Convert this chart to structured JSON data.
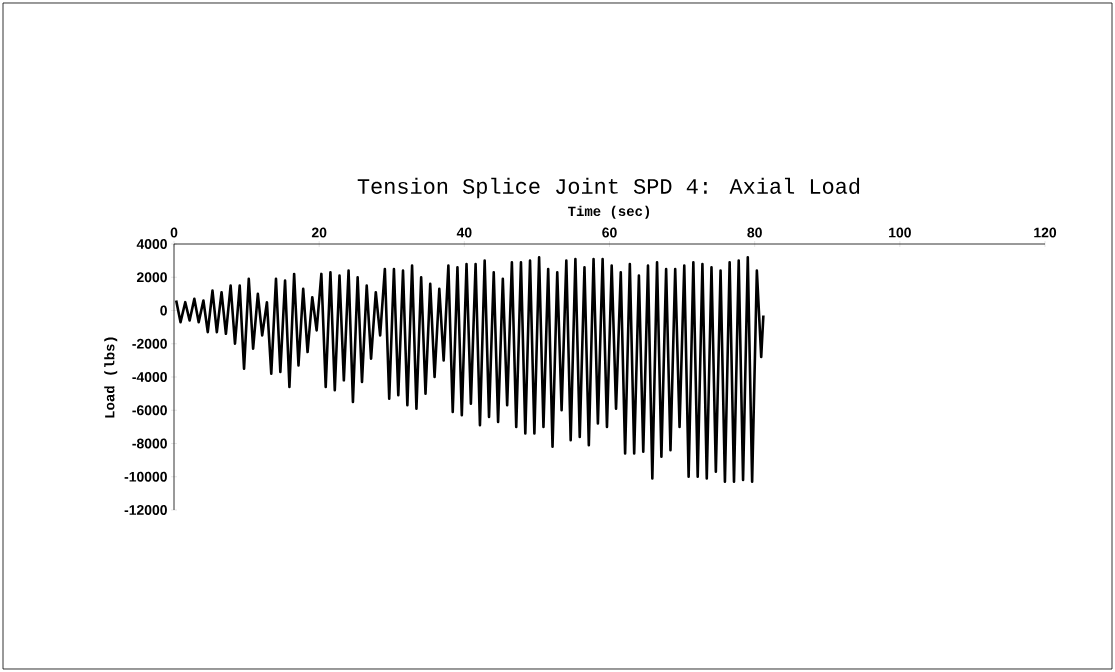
{
  "chart_data": {
    "type": "line",
    "title": "Tension Splice Joint SPD 4:  Axial Load",
    "xlabel": "Time (sec)",
    "ylabel": "Load (lbs)",
    "xlim": [
      0,
      120
    ],
    "xticks": [
      0,
      20,
      40,
      60,
      80,
      100,
      120
    ],
    "ylim": [
      -12000,
      4000
    ],
    "yticks": [
      -12000,
      -10000,
      -8000,
      -6000,
      -4000,
      -2000,
      0,
      2000,
      4000
    ],
    "grid": false,
    "marker": "none",
    "line_style": "solid",
    "series": [
      {
        "color": "#000000",
        "x": [
          0.3,
          0.9,
          1.55,
          2.15,
          2.8,
          3.4,
          4.05,
          4.65,
          5.3,
          5.9,
          6.55,
          7.15,
          7.8,
          8.4,
          9.05,
          9.65,
          10.3,
          10.9,
          11.55,
          12.15,
          12.8,
          13.4,
          14.05,
          14.65,
          15.3,
          15.9,
          16.55,
          17.15,
          17.8,
          18.4,
          19.05,
          19.65,
          20.3,
          20.9,
          21.55,
          22.15,
          22.8,
          23.4,
          24.05,
          24.65,
          25.3,
          25.9,
          26.55,
          27.15,
          27.8,
          28.4,
          29.05,
          29.65,
          30.3,
          30.9,
          31.55,
          32.15,
          32.8,
          33.4,
          34.05,
          34.65,
          35.3,
          35.9,
          36.55,
          37.15,
          37.8,
          38.4,
          39.05,
          39.65,
          40.3,
          40.9,
          41.55,
          42.15,
          42.8,
          43.4,
          44.05,
          44.65,
          45.3,
          45.9,
          46.55,
          47.15,
          47.8,
          48.4,
          49.05,
          49.65,
          50.3,
          50.9,
          51.55,
          52.15,
          52.8,
          53.4,
          54.05,
          54.65,
          55.3,
          55.9,
          56.55,
          57.15,
          57.8,
          58.4,
          59.05,
          59.65,
          60.3,
          60.9,
          61.55,
          62.15,
          62.8,
          63.4,
          64.05,
          64.65,
          65.3,
          65.9,
          66.55,
          67.15,
          67.8,
          68.4,
          69.05,
          69.65,
          70.3,
          70.9,
          71.55,
          72.15,
          72.8,
          73.4,
          74.05,
          74.65,
          75.3,
          75.9,
          76.55,
          77.15,
          77.8,
          78.4,
          79.05,
          79.65,
          80.3,
          80.9,
          81.2
        ],
        "values": [
          600,
          -700,
          500,
          -600,
          700,
          -700,
          600,
          -1300,
          1200,
          -1300,
          1100,
          -1400,
          1500,
          -2000,
          1500,
          -3500,
          1900,
          -2300,
          1000,
          -1500,
          500,
          -3800,
          1900,
          -3700,
          1800,
          -4600,
          2200,
          -3300,
          1300,
          -2500,
          800,
          -1200,
          2200,
          -4600,
          2300,
          -4800,
          2100,
          -4200,
          2400,
          -5500,
          2000,
          -4300,
          1500,
          -2900,
          1100,
          -1500,
          2500,
          -5300,
          2500,
          -5100,
          2400,
          -5700,
          2700,
          -5900,
          2000,
          -5000,
          1600,
          -4000,
          1300,
          -3000,
          2700,
          -6100,
          2600,
          -6300,
          2800,
          -5600,
          2800,
          -6900,
          3000,
          -6400,
          2300,
          -6700,
          1900,
          -5700,
          2900,
          -7000,
          2900,
          -7400,
          3000,
          -7400,
          3200,
          -7000,
          2500,
          -8200,
          2300,
          -6000,
          3000,
          -7800,
          3100,
          -7600,
          2600,
          -8100,
          3100,
          -6800,
          3100,
          -7000,
          2700,
          -5900,
          2300,
          -8600,
          2800,
          -8600,
          2100,
          -8500,
          2700,
          -10100,
          2900,
          -8800,
          2500,
          -8400,
          2500,
          -7000,
          2700,
          -10000,
          2900,
          -10000,
          2800,
          -10100,
          2600,
          -9700,
          2400,
          -10300,
          2900,
          -10300,
          3000,
          -10200,
          3200,
          -10300,
          2400,
          -2800,
          -300
        ]
      }
    ]
  }
}
